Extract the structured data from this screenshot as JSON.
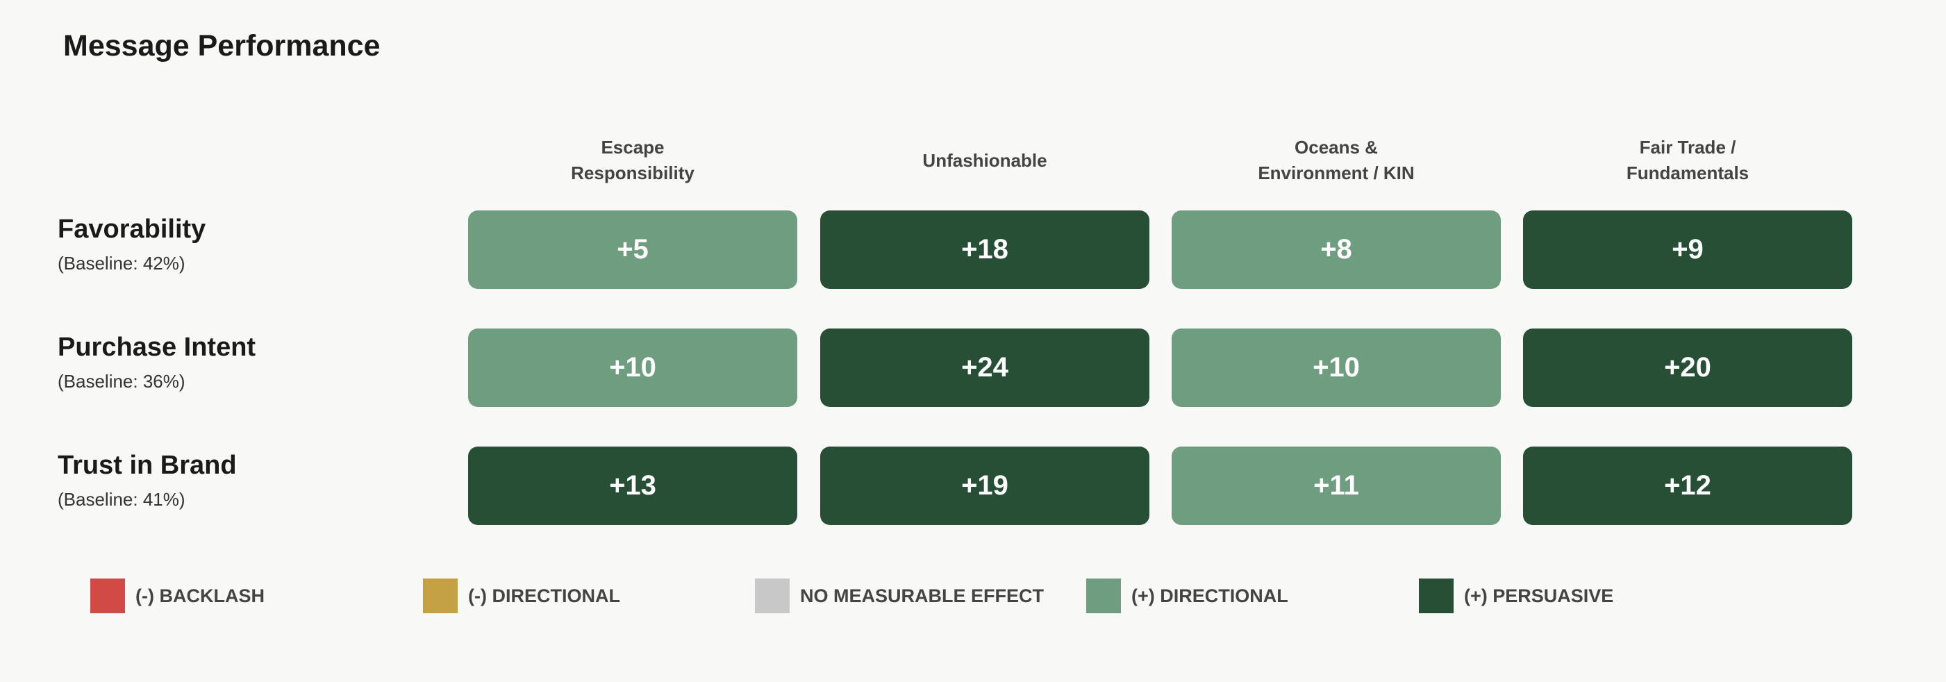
{
  "chart_data": {
    "type": "heatmap",
    "title": "Message Performance",
    "columns": [
      "Escape\nResponsibility",
      "Unfashionable",
      "Oceans &\nEnvironment / KIN",
      "Fair Trade /\nFundamentals"
    ],
    "rows": [
      {
        "label": "Favorability",
        "baseline": "(Baseline: 42%)",
        "values": [
          "+5",
          "+18",
          "+8",
          "+9"
        ],
        "categories": [
          "directional_pos",
          "persuasive",
          "directional_pos",
          "persuasive"
        ]
      },
      {
        "label": "Purchase Intent",
        "baseline": "(Baseline: 36%)",
        "values": [
          "+10",
          "+24",
          "+10",
          "+20"
        ],
        "categories": [
          "directional_pos",
          "persuasive",
          "directional_pos",
          "persuasive"
        ]
      },
      {
        "label": "Trust in Brand",
        "baseline": "(Baseline: 41%)",
        "values": [
          "+13",
          "+19",
          "+11",
          "+12"
        ],
        "categories": [
          "persuasive",
          "persuasive",
          "directional_pos",
          "persuasive"
        ]
      }
    ],
    "legend": [
      {
        "key": "backlash",
        "label": "(-) BACKLASH",
        "color": "#d14a46"
      },
      {
        "key": "directional_neg",
        "label": "(-) DIRECTIONAL",
        "color": "#c4a243"
      },
      {
        "key": "no_effect",
        "label": "NO MEASURABLE EFFECT",
        "color": "#c8c8c8"
      },
      {
        "key": "directional_pos",
        "label": "(+) DIRECTIONAL",
        "color": "#6f9d7f"
      },
      {
        "key": "persuasive",
        "label": "(+) PERSUASIVE",
        "color": "#264f35"
      }
    ]
  }
}
